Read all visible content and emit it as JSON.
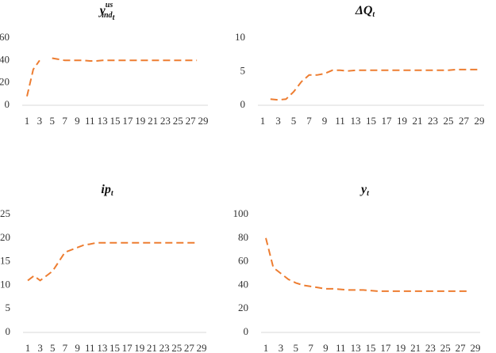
{
  "chart_data": [
    {
      "type": "line",
      "title": {
        "base": "y",
        "sup": "us",
        "sub": "ind",
        "subsub": "t"
      },
      "categories": [
        1,
        null,
        3,
        null,
        5,
        null,
        7,
        null,
        9,
        null,
        11,
        null,
        13,
        null,
        15,
        null,
        17,
        null,
        19,
        null,
        21,
        null,
        23,
        null,
        25,
        null,
        27,
        null,
        29
      ],
      "series": [
        {
          "color": "#ed7d31",
          "values": [
            8,
            32,
            40,
            null,
            42,
            41,
            40,
            40,
            40,
            40,
            39.5,
            39.5,
            40,
            40,
            40,
            40,
            40,
            40,
            40,
            40,
            40,
            40,
            40,
            40,
            40,
            40,
            40,
            40,
            null
          ]
        }
      ],
      "ylim": [
        0,
        60
      ],
      "yticks": [
        0,
        20,
        40,
        60
      ],
      "grid": false
    },
    {
      "type": "line",
      "title": {
        "base": "ΔQ",
        "sub": "t"
      },
      "categories": [
        1,
        null,
        3,
        null,
        5,
        null,
        7,
        null,
        9,
        null,
        11,
        null,
        13,
        null,
        15,
        null,
        17,
        null,
        19,
        null,
        21,
        null,
        23,
        null,
        25,
        null,
        27,
        null,
        29
      ],
      "series": [
        {
          "color": "#ed7d31",
          "values": [
            null,
            0.9,
            0.8,
            0.9,
            2,
            3.5,
            4.5,
            4.5,
            4.7,
            5.2,
            5.2,
            5.1,
            5.2,
            5.2,
            5.2,
            5.2,
            5.2,
            5.2,
            5.2,
            5.2,
            5.2,
            5.2,
            5.2,
            5.2,
            5.2,
            5.3,
            5.3,
            5.3,
            5.3
          ]
        }
      ],
      "ylim": [
        0,
        10
      ],
      "yticks": [
        0,
        5,
        10
      ],
      "grid": false
    },
    {
      "type": "line",
      "title": {
        "base": "ip",
        "sub": "t"
      },
      "categories": [
        1,
        null,
        3,
        null,
        5,
        null,
        7,
        null,
        9,
        null,
        11,
        null,
        13,
        null,
        15,
        null,
        17,
        null,
        19,
        null,
        21,
        null,
        23,
        null,
        25,
        null,
        27,
        null,
        29
      ],
      "series": [
        {
          "color": "#ed7d31",
          "values": [
            11,
            12,
            11,
            12,
            13,
            15,
            17,
            17.5,
            18,
            18.5,
            18.7,
            19,
            19,
            19,
            19,
            19,
            19,
            19,
            19,
            19,
            19,
            19,
            19,
            19,
            19,
            19,
            19,
            19,
            null
          ]
        }
      ],
      "ylim": [
        0,
        25
      ],
      "yticks": [
        0,
        5,
        10,
        15,
        20,
        25
      ],
      "grid": false
    },
    {
      "type": "line",
      "title": {
        "base": "y",
        "sub": "t"
      },
      "categories": [
        1,
        null,
        3,
        null,
        5,
        null,
        7,
        null,
        9,
        null,
        11,
        null,
        13,
        null,
        15,
        null,
        17,
        null,
        19,
        null,
        21,
        null,
        23,
        null,
        25,
        null,
        27,
        null,
        29
      ],
      "series": [
        {
          "color": "#ed7d31",
          "values": [
            80,
            55,
            50,
            45,
            42,
            40,
            39,
            38,
            37,
            37,
            36.5,
            36,
            36,
            36,
            35.5,
            35,
            35,
            35,
            35,
            35,
            35,
            35,
            35,
            35,
            35,
            35,
            35,
            35,
            null
          ]
        }
      ],
      "ylim": [
        0,
        100
      ],
      "yticks": [
        0,
        20,
        40,
        60,
        80,
        100
      ],
      "grid": false
    }
  ]
}
